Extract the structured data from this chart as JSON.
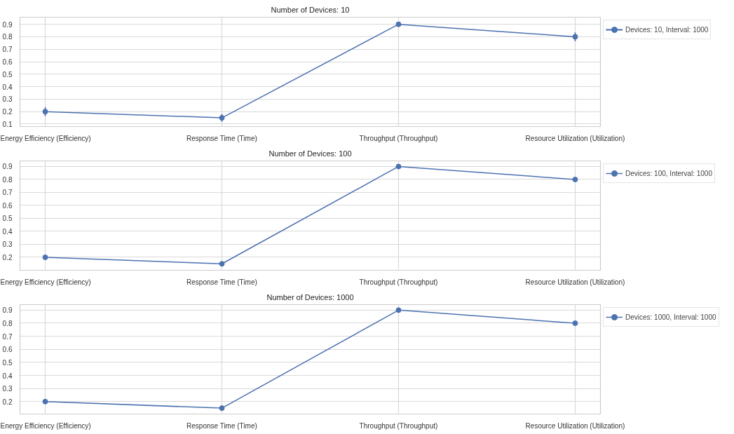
{
  "chart_data": [
    {
      "type": "line",
      "title": "Number of Devices: 10",
      "categories": [
        "Energy Efficiency (Efficiency)",
        "Response Time (Time)",
        "Throughput (Throughput)",
        "Resource Utilization (Utilization)"
      ],
      "ylim": [
        0.08,
        0.957
      ],
      "yticks": [
        0.1,
        0.2,
        0.3,
        0.4,
        0.5,
        0.6,
        0.7,
        0.8,
        0.9
      ],
      "grid": true,
      "legend": "top right",
      "marker": "circle",
      "series": [
        {
          "name": "Devices: 10, Interval: 1000",
          "color": "#4c72b0",
          "values": [
            0.2,
            0.15,
            0.9,
            0.8
          ],
          "errors": [
            0.035,
            0.03,
            null,
            0.035
          ]
        }
      ]
    },
    {
      "type": "line",
      "title": "Number of Devices: 100",
      "categories": [
        "Energy Efficiency (Efficiency)",
        "Response Time (Time)",
        "Throughput (Throughput)",
        "Resource Utilization (Utilization)"
      ],
      "ylim": [
        0.1,
        0.943
      ],
      "yticks": [
        0.2,
        0.3,
        0.4,
        0.5,
        0.6,
        0.7,
        0.8,
        0.9
      ],
      "grid": true,
      "legend": "top right",
      "marker": "circle",
      "series": [
        {
          "name": "Devices: 100, Interval: 1000",
          "color": "#4c72b0",
          "values": [
            0.2,
            0.15,
            0.9,
            0.8
          ]
        }
      ]
    },
    {
      "type": "line",
      "title": "Number of Devices: 1000",
      "categories": [
        "Energy Efficiency (Efficiency)",
        "Response Time (Time)",
        "Throughput (Throughput)",
        "Resource Utilization (Utilization)"
      ],
      "ylim": [
        0.105,
        0.942
      ],
      "yticks": [
        0.2,
        0.3,
        0.4,
        0.5,
        0.6,
        0.7,
        0.8,
        0.9
      ],
      "grid": true,
      "legend": "top right",
      "marker": "circle",
      "series": [
        {
          "name": "Devices: 1000, Interval: 1000",
          "color": "#4c72b0",
          "values": [
            0.2,
            0.15,
            0.9,
            0.8
          ]
        }
      ]
    }
  ]
}
